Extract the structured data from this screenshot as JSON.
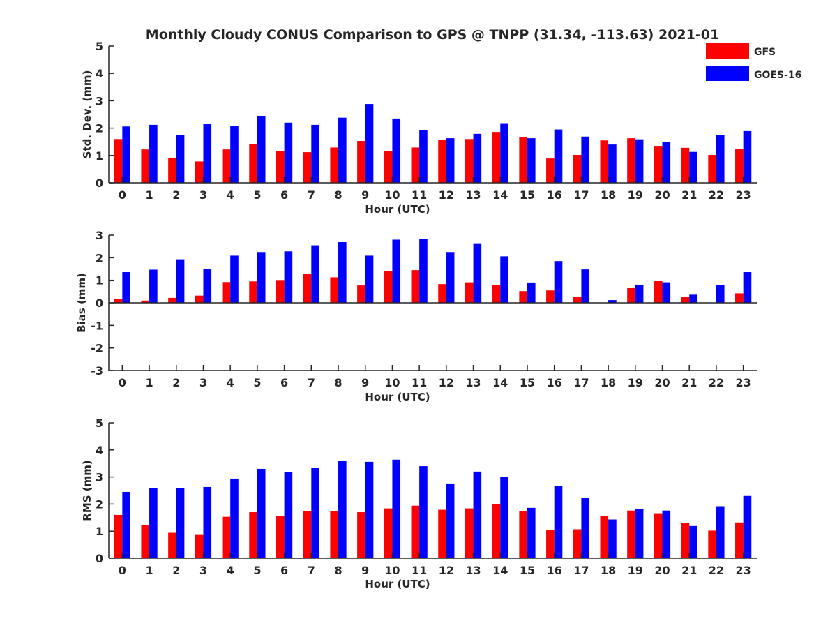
{
  "title": "Monthly Cloudy CONUS Comparison to GPS @ TNPP (31.34, -113.63) 2021-01",
  "legend": [
    {
      "label": "GFS",
      "color": "#ff0000"
    },
    {
      "label": "GOES-16",
      "color": "#0000ff"
    }
  ],
  "chart_data": [
    {
      "type": "bar",
      "xlabel": "Hour (UTC)",
      "ylabel": "Std. Dev. (mm)",
      "ylim": [
        0,
        5
      ],
      "yticks": [
        0,
        1,
        2,
        3,
        4,
        5
      ],
      "categories": [
        "0",
        "1",
        "2",
        "3",
        "4",
        "5",
        "6",
        "7",
        "8",
        "9",
        "10",
        "11",
        "12",
        "13",
        "14",
        "15",
        "16",
        "17",
        "18",
        "19",
        "20",
        "21",
        "22",
        "23"
      ],
      "series": [
        {
          "name": "GFS",
          "color": "#ff0000",
          "values": [
            1.6,
            1.22,
            0.92,
            0.78,
            1.22,
            1.42,
            1.17,
            1.12,
            1.29,
            1.53,
            1.17,
            1.29,
            1.58,
            1.6,
            1.86,
            1.66,
            0.89,
            1.02,
            1.55,
            1.63,
            1.35,
            1.28,
            1.02,
            1.25
          ]
        },
        {
          "name": "GOES-16",
          "color": "#0000ff",
          "values": [
            2.06,
            2.12,
            1.76,
            2.15,
            2.07,
            2.45,
            2.2,
            2.12,
            2.38,
            2.88,
            2.35,
            1.92,
            1.63,
            1.79,
            2.18,
            1.63,
            1.95,
            1.69,
            1.4,
            1.59,
            1.5,
            1.13,
            1.76,
            1.89
          ]
        }
      ]
    },
    {
      "type": "bar",
      "xlabel": "Hour (UTC)",
      "ylabel": "Bias (mm)",
      "ylim": [
        -3,
        3
      ],
      "yticks": [
        -3,
        -2,
        -1,
        0,
        1,
        2,
        3
      ],
      "categories": [
        "0",
        "1",
        "2",
        "3",
        "4",
        "5",
        "6",
        "7",
        "8",
        "9",
        "10",
        "11",
        "12",
        "13",
        "14",
        "15",
        "16",
        "17",
        "18",
        "19",
        "20",
        "21",
        "22",
        "23"
      ],
      "series": [
        {
          "name": "GFS",
          "color": "#ff0000",
          "values": [
            0.17,
            0.1,
            0.22,
            0.32,
            0.92,
            0.95,
            1.01,
            1.28,
            1.13,
            0.77,
            1.42,
            1.45,
            0.83,
            0.91,
            0.8,
            0.52,
            0.55,
            0.28,
            0.0,
            0.65,
            0.96,
            0.27,
            0.0,
            0.42
          ]
        },
        {
          "name": "GOES-16",
          "color": "#0000ff",
          "values": [
            1.36,
            1.47,
            1.93,
            1.5,
            2.09,
            2.25,
            2.28,
            2.55,
            2.69,
            2.09,
            2.8,
            2.83,
            2.25,
            2.64,
            2.06,
            0.9,
            1.85,
            1.48,
            0.12,
            0.8,
            0.91,
            0.36,
            0.8,
            1.36
          ]
        }
      ]
    },
    {
      "type": "bar",
      "xlabel": "Hour (UTC)",
      "ylabel": "RMS (mm)",
      "ylim": [
        0,
        5
      ],
      "yticks": [
        0,
        1,
        2,
        3,
        4,
        5
      ],
      "categories": [
        "0",
        "1",
        "2",
        "3",
        "4",
        "5",
        "6",
        "7",
        "8",
        "9",
        "10",
        "11",
        "12",
        "13",
        "14",
        "15",
        "16",
        "17",
        "18",
        "19",
        "20",
        "21",
        "22",
        "23"
      ],
      "series": [
        {
          "name": "GFS",
          "color": "#ff0000",
          "values": [
            1.6,
            1.23,
            0.94,
            0.86,
            1.53,
            1.7,
            1.55,
            1.73,
            1.73,
            1.7,
            1.84,
            1.94,
            1.79,
            1.84,
            2.01,
            1.73,
            1.04,
            1.07,
            1.55,
            1.76,
            1.66,
            1.29,
            1.02,
            1.32
          ]
        },
        {
          "name": "GOES-16",
          "color": "#0000ff",
          "values": [
            2.45,
            2.58,
            2.6,
            2.63,
            2.94,
            3.3,
            3.17,
            3.33,
            3.6,
            3.56,
            3.64,
            3.4,
            2.76,
            3.2,
            2.99,
            1.86,
            2.66,
            2.22,
            1.43,
            1.81,
            1.76,
            1.19,
            1.92,
            2.3
          ]
        }
      ]
    }
  ]
}
